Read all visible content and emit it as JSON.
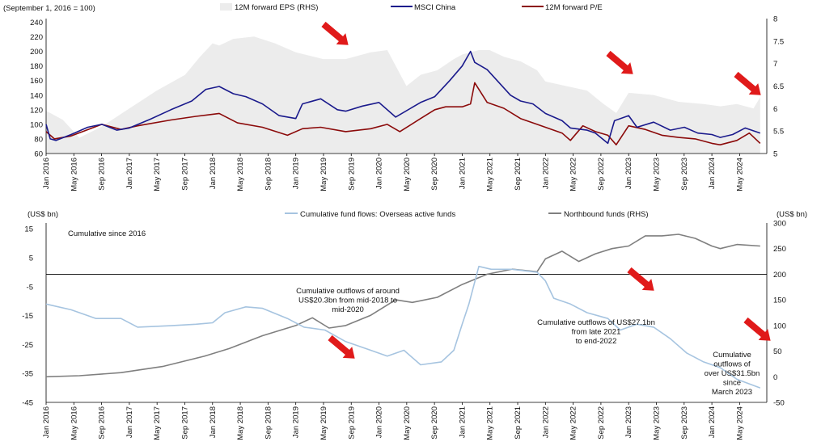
{
  "chart_data": [
    {
      "type": "area+line",
      "index_note": "(September 1, 2016 = 100)",
      "legend": [
        "12M forward EPS (RHS)",
        "MSCI China",
        "12M forward P/E"
      ],
      "colors": {
        "eps": "#ececec",
        "msci": "#1a1a8c",
        "pe": "#8b0a0a",
        "arrow": "#e01a1a"
      },
      "x_labels": [
        "Jan 2016",
        "May 2016",
        "Sep 2016",
        "Jan 2017",
        "May 2017",
        "Sep 2017",
        "Jan 2018",
        "May 2018",
        "Sep 2018",
        "Jan 2019",
        "May 2019",
        "Sep 2019",
        "Jan 2020",
        "May 2020",
        "Sep 2020",
        "Jan 2021",
        "May 2021",
        "Sep 2021",
        "Jan 2022",
        "May 2022",
        "Sep 2022",
        "Jan 2023",
        "May 2023",
        "Sep 2023",
        "Jan 2024",
        "May 2024"
      ],
      "yleft_ticks": [
        60,
        80,
        100,
        120,
        140,
        160,
        180,
        200,
        220,
        240
      ],
      "yright_ticks": [
        5,
        5.5,
        6,
        6.5,
        7,
        7.5,
        8
      ],
      "ylim_left": [
        60,
        245
      ],
      "ylim_right": [
        5,
        8
      ],
      "series": [
        {
          "name": "12M forward EPS (RHS)",
          "axis": "right",
          "x": [
            2016.0,
            2016.2,
            2016.4,
            2016.67,
            2017.0,
            2017.33,
            2017.67,
            2017.85,
            2018.0,
            2018.08,
            2018.25,
            2018.5,
            2018.75,
            2019.0,
            2019.33,
            2019.6,
            2019.9,
            2020.1,
            2020.33,
            2020.5,
            2020.7,
            2020.9,
            2021.0,
            2021.2,
            2021.33,
            2021.5,
            2021.7,
            2021.9,
            2022.0,
            2022.25,
            2022.5,
            2022.7,
            2022.85,
            2023.0,
            2023.3,
            2023.6,
            2023.9,
            2024.1,
            2024.3,
            2024.5,
            2024.58
          ],
          "values": [
            5.95,
            5.75,
            5.35,
            5.6,
            6.0,
            6.4,
            6.75,
            7.15,
            7.45,
            7.4,
            7.55,
            7.6,
            7.45,
            7.25,
            7.1,
            7.1,
            7.25,
            7.3,
            6.5,
            6.75,
            6.85,
            7.1,
            7.2,
            7.3,
            7.3,
            7.15,
            7.05,
            6.85,
            6.6,
            6.5,
            6.4,
            6.1,
            5.9,
            6.35,
            6.3,
            6.15,
            6.1,
            6.05,
            6.1,
            6.0,
            6.25
          ]
        },
        {
          "name": "MSCI China",
          "axis": "left",
          "x": [
            2016.0,
            2016.05,
            2016.12,
            2016.3,
            2016.5,
            2016.67,
            2016.85,
            2017.0,
            2017.25,
            2017.5,
            2017.75,
            2017.92,
            2018.08,
            2018.25,
            2018.4,
            2018.6,
            2018.8,
            2019.0,
            2019.08,
            2019.3,
            2019.5,
            2019.6,
            2019.8,
            2020.0,
            2020.2,
            2020.5,
            2020.67,
            2020.85,
            2021.0,
            2021.1,
            2021.15,
            2021.3,
            2021.5,
            2021.58,
            2021.7,
            2021.85,
            2022.0,
            2022.2,
            2022.3,
            2022.5,
            2022.6,
            2022.75,
            2022.83,
            2023.0,
            2023.1,
            2023.3,
            2023.5,
            2023.67,
            2023.83,
            2024.0,
            2024.1,
            2024.25,
            2024.4,
            2024.58
          ],
          "values": [
            100,
            80,
            78,
            86,
            96,
            100,
            92,
            95,
            107,
            120,
            132,
            148,
            152,
            142,
            138,
            128,
            112,
            108,
            128,
            135,
            120,
            118,
            125,
            130,
            110,
            130,
            138,
            160,
            180,
            200,
            185,
            175,
            150,
            140,
            132,
            128,
            115,
            105,
            95,
            92,
            88,
            74,
            105,
            112,
            96,
            103,
            92,
            96,
            88,
            86,
            82,
            86,
            95,
            88
          ]
        },
        {
          "name": "12M forward P/E",
          "axis": "left",
          "x": [
            2016.0,
            2016.1,
            2016.3,
            2016.67,
            2016.9,
            2017.1,
            2017.5,
            2017.8,
            2018.08,
            2018.3,
            2018.6,
            2018.9,
            2019.08,
            2019.3,
            2019.6,
            2019.9,
            2020.1,
            2020.25,
            2020.5,
            2020.67,
            2020.8,
            2021.0,
            2021.1,
            2021.15,
            2021.3,
            2021.5,
            2021.7,
            2021.9,
            2022.0,
            2022.2,
            2022.3,
            2022.45,
            2022.6,
            2022.75,
            2022.85,
            2023.0,
            2023.2,
            2023.4,
            2023.6,
            2023.8,
            2024.0,
            2024.1,
            2024.3,
            2024.45,
            2024.58
          ],
          "values": [
            90,
            80,
            84,
            100,
            93,
            98,
            106,
            111,
            115,
            102,
            96,
            85,
            94,
            96,
            90,
            94,
            100,
            90,
            108,
            120,
            124,
            124,
            128,
            157,
            130,
            122,
            108,
            100,
            96,
            88,
            78,
            98,
            90,
            85,
            72,
            98,
            93,
            85,
            82,
            80,
            74,
            72,
            78,
            88,
            74
          ]
        }
      ],
      "annotations_arrows": 3
    },
    {
      "type": "line",
      "legend": [
        "Cumulative fund flows: Overseas active funds",
        "Northbound funds (RHS)"
      ],
      "colors": {
        "active": "#a6c4e0",
        "northbound": "#7f7f7f",
        "arrow": "#e01a1a"
      },
      "ylabel_left": "(US$ bn)",
      "ylabel_right": "(US$ bn)",
      "note": "Cumulative since 2016",
      "x_labels": [
        "Jan 2016",
        "May 2016",
        "Sep 2016",
        "Jan 2017",
        "May 2017",
        "Sep 2017",
        "Jan 2018",
        "May 2018",
        "Sep 2018",
        "Jan 2019",
        "May 2019",
        "Sep 2019",
        "Jan 2020",
        "May 2020",
        "Sep 2020",
        "Jan 2021",
        "May 2021",
        "Sep 2021",
        "Jan 2022",
        "May 2022",
        "Sep 2022",
        "Jan 2023",
        "May 2023",
        "Sep 2023",
        "Jan 2024",
        "May 2024"
      ],
      "yleft_ticks": [
        15,
        5,
        -5,
        -15,
        -25,
        -35,
        -45
      ],
      "yright_ticks": [
        300,
        250,
        200,
        150,
        100,
        50,
        0,
        -50
      ],
      "ylim_left": [
        -45,
        17
      ],
      "ylim_right": [
        -50,
        300
      ],
      "series": [
        {
          "name": "Cumulative fund flows: Overseas active funds",
          "axis": "left",
          "x": [
            2016.0,
            2016.3,
            2016.6,
            2016.9,
            2017.1,
            2017.5,
            2017.8,
            2018.0,
            2018.15,
            2018.4,
            2018.6,
            2018.9,
            2019.1,
            2019.35,
            2019.6,
            2019.9,
            2020.1,
            2020.3,
            2020.5,
            2020.75,
            2020.9,
            2021.0,
            2021.08,
            2021.2,
            2021.35,
            2021.6,
            2021.9,
            2022.0,
            2022.1,
            2022.3,
            2022.5,
            2022.75,
            2022.9,
            2023.1,
            2023.3,
            2023.5,
            2023.7,
            2023.9,
            2024.1,
            2024.3,
            2024.58
          ],
          "values": [
            -11,
            -13,
            -16,
            -16,
            -19,
            -18.5,
            -18,
            -17.5,
            -14,
            -12,
            -12.5,
            -16,
            -19,
            -20,
            -24,
            -27,
            -29,
            -27,
            -32,
            -31,
            -27,
            -18,
            -11,
            2,
            1,
            1,
            0,
            -3,
            -9,
            -11,
            -14,
            -16,
            -20,
            -18,
            -19,
            -23,
            -28,
            -31,
            -33,
            -37,
            -40
          ]
        },
        {
          "name": "Northbound funds (RHS)",
          "axis": "right",
          "x": [
            2016.0,
            2016.4,
            2016.9,
            2017.4,
            2017.9,
            2018.2,
            2018.6,
            2019.0,
            2019.2,
            2019.4,
            2019.6,
            2019.9,
            2020.2,
            2020.4,
            2020.7,
            2021.0,
            2021.3,
            2021.6,
            2021.9,
            2022.0,
            2022.2,
            2022.4,
            2022.6,
            2022.8,
            2023.0,
            2023.2,
            2023.4,
            2023.6,
            2023.8,
            2024.0,
            2024.1,
            2024.3,
            2024.58
          ],
          "values": [
            0,
            2,
            8,
            20,
            40,
            55,
            80,
            100,
            115,
            95,
            100,
            120,
            150,
            145,
            155,
            180,
            200,
            210,
            205,
            230,
            245,
            225,
            240,
            250,
            255,
            275,
            275,
            278,
            270,
            255,
            250,
            258,
            255
          ]
        }
      ],
      "annotations": [
        "Cumulative outflows of around US$20.3bn from mid-2018 to mid-2020",
        "Cumulative outflows of US$27.1bn from late 2021 to end-2022",
        "Cumulative outflows of over US$31.5bn since March 2023"
      ]
    }
  ]
}
